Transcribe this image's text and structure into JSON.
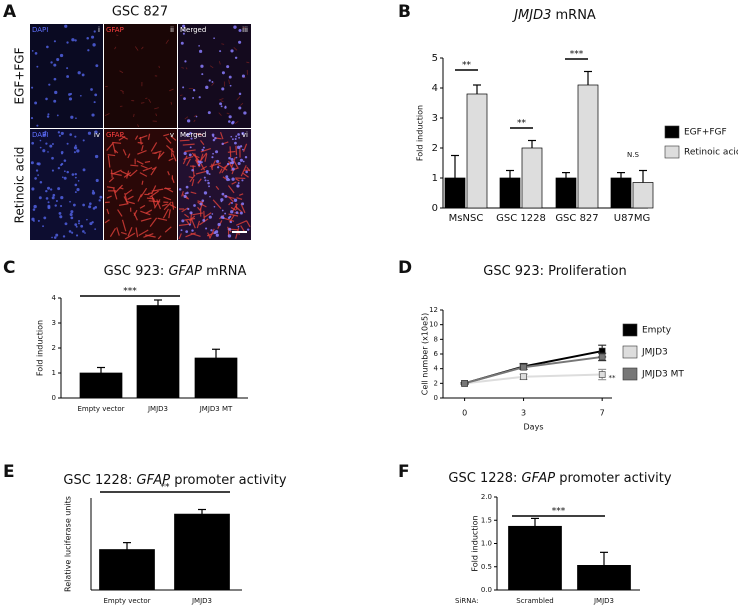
{
  "panel_letters": [
    "A",
    "B",
    "C",
    "D",
    "E",
    "F"
  ],
  "figure_a": {
    "title": "GSC 827",
    "rows": [
      "EGF+FGF",
      "Retinoic acid"
    ],
    "images": [
      {
        "stain": "DAPI",
        "numeral": "i"
      },
      {
        "stain": "GFAP",
        "numeral": "ii"
      },
      {
        "stain": "Merged",
        "numeral": "iii"
      },
      {
        "stain": "DAPI",
        "numeral": "iv"
      },
      {
        "stain": "GFAP",
        "numeral": "v"
      },
      {
        "stain": "Merged",
        "numeral": "vi"
      }
    ]
  },
  "chart_data": [
    {
      "type": "bar",
      "title_parts": [
        {
          "text": "JMJD3",
          "italic": true
        },
        {
          "text": " mRNA",
          "italic": false
        }
      ],
      "ylabel": "Fold induction",
      "categories": [
        "MsNSC",
        "GSC 1228",
        "GSC 827",
        "U87MG"
      ],
      "series": [
        {
          "name": "EGF+FGF",
          "color": "#000000",
          "values": [
            1,
            1,
            1,
            1
          ],
          "errors": [
            0.75,
            0.25,
            0.18,
            0.18
          ]
        },
        {
          "name": "Retinoic acid",
          "color": "#dddddd",
          "values": [
            3.8,
            2.0,
            4.1,
            0.85
          ],
          "errors": [
            0.3,
            0.25,
            0.45,
            0.4
          ]
        }
      ],
      "ylim": [
        0,
        5
      ],
      "yticks": [
        0,
        1,
        2,
        3,
        4,
        5
      ],
      "legend": "right",
      "annotations": [
        "**",
        "**",
        "***",
        "N.S"
      ]
    },
    {
      "type": "bar",
      "title_parts": [
        {
          "text": "GSC 923: ",
          "italic": false
        },
        {
          "text": "GFAP",
          "italic": true
        },
        {
          "text": " mRNA",
          "italic": false
        }
      ],
      "ylabel": "Fold induction",
      "categories": [
        "Empty vector",
        "JMJD3",
        "JMJD3 MT"
      ],
      "color": "#000000",
      "values": [
        1.0,
        3.7,
        1.6
      ],
      "errors": [
        0.22,
        0.22,
        0.35
      ],
      "ylim": [
        0,
        4
      ],
      "yticks": [
        0,
        1,
        2,
        3,
        4
      ],
      "annotations": [
        "***"
      ]
    },
    {
      "type": "line",
      "title_parts": [
        {
          "text": "GSC 923: Proliferation",
          "italic": false
        }
      ],
      "xlabel": "Days",
      "ylabel": "Cell number (x10e5)",
      "x": [
        0,
        3,
        7
      ],
      "xlim": [
        -1.1,
        7.5
      ],
      "xticks": [
        0,
        3,
        7
      ],
      "ylim": [
        0,
        12
      ],
      "yticks": [
        0,
        2,
        4,
        6,
        8,
        10,
        12
      ],
      "legend": "right",
      "series": [
        {
          "name": "Empty",
          "color": "#000000",
          "values": [
            2.0,
            4.3,
            6.4
          ],
          "errors": [
            0.1,
            0.4,
            0.8
          ]
        },
        {
          "name": "JMJD3",
          "color": "#dddddd",
          "values": [
            2.0,
            2.9,
            3.2
          ],
          "errors": [
            0.1,
            0.35,
            0.7
          ]
        },
        {
          "name": "JMJD3 MT",
          "color": "#777777",
          "values": [
            2.0,
            4.2,
            5.6
          ],
          "errors": [
            0.1,
            0.3,
            0.5
          ]
        }
      ],
      "annotations": [
        "**"
      ]
    },
    {
      "type": "bar",
      "title_parts": [
        {
          "text": "GSC 1228: ",
          "italic": false
        },
        {
          "text": "GFAP",
          "italic": true
        },
        {
          "text": " promoter activity",
          "italic": false
        }
      ],
      "ylabel": "Relative luciferase units",
      "categories": [
        "Empty vector",
        "JMJD3"
      ],
      "color": "#000000",
      "values": [
        8.8,
        16.5
      ],
      "errors": [
        1.5,
        1.0
      ],
      "ylim": [
        0,
        20
      ],
      "annotations": [
        "**"
      ]
    },
    {
      "type": "bar",
      "title_parts": [
        {
          "text": "GSC 1228: ",
          "italic": false
        },
        {
          "text": "GFAP",
          "italic": true
        },
        {
          "text": " promoter activity",
          "italic": false
        }
      ],
      "ylabel": "Fold induction",
      "x_prefix_label": "SiRNA:",
      "categories": [
        "Scrambled",
        "JMJD3"
      ],
      "color": "#000000",
      "values": [
        1.37,
        0.53
      ],
      "errors": [
        0.17,
        0.28
      ],
      "ylim": [
        0,
        2.0
      ],
      "yticks": [
        {
          "value": 0,
          "label": "0.0"
        },
        {
          "value": 0.5,
          "label": "0.5"
        },
        {
          "value": 1.0,
          "label": "1.0"
        },
        {
          "value": 1.5,
          "label": "1.5"
        },
        {
          "value": 2.0,
          "label": "2.0"
        }
      ],
      "annotations": [
        "***"
      ]
    }
  ]
}
